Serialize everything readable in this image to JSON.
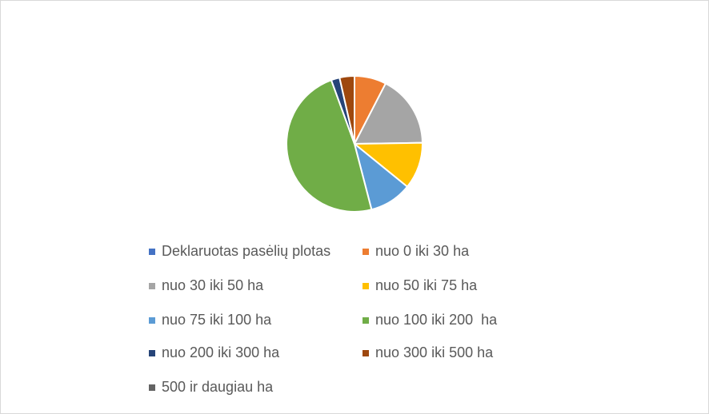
{
  "colors": {
    "background": "#ffffff",
    "border": "#d9d9d9",
    "legend_text": "#595959"
  },
  "chart_data": {
    "type": "pie",
    "title": "",
    "categories": [
      "Deklaruotas pasėlių plotas",
      "nuo 0 iki 30 ha",
      "nuo 30 iki 50 ha",
      "nuo 50 iki 75 ha",
      "nuo 75 iki 100 ha",
      "nuo 100 iki 200  ha",
      "nuo 200 iki 300 ha",
      "nuo 300 iki 500 ha",
      "500 ir daugiau ha"
    ],
    "values": [
      0,
      7.5,
      17,
      11,
      10,
      48,
      2,
      3.5,
      0
    ],
    "colors": [
      "#4472c4",
      "#ed7d31",
      "#a5a5a5",
      "#ffc000",
      "#5b9bd5",
      "#70ad47",
      "#264478",
      "#9e480e",
      "#636363"
    ],
    "legend_position": "bottom",
    "start_angle_deg": 0
  }
}
